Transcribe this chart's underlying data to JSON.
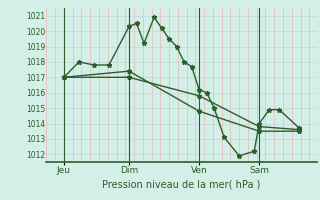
{
  "background_color": "#d4eee8",
  "plot_bg_color": "#d4eee8",
  "grid_color_h": "#c8ddd8",
  "grid_color_v": "#e8b8b8",
  "line_color": "#2a5e2a",
  "marker_color": "#2a5e2a",
  "xlabel": "Pression niveau de la mer( hPa )",
  "ylim": [
    1011.5,
    1021.5
  ],
  "yticks": [
    1012,
    1013,
    1014,
    1015,
    1016,
    1017,
    1018,
    1019,
    1020,
    1021
  ],
  "day_labels": [
    "Jeu",
    "Dim",
    "Ven",
    "Sam"
  ],
  "xlim": [
    0,
    108
  ],
  "day_vline_x": [
    7,
    33,
    61,
    85
  ],
  "series1": {
    "x": [
      7,
      13,
      19,
      25,
      33,
      36,
      39,
      43,
      46,
      49,
      52,
      55,
      58,
      61,
      64,
      67,
      71,
      77,
      83,
      85,
      89,
      93,
      101
    ],
    "y": [
      1017.0,
      1018.0,
      1017.8,
      1017.8,
      1020.3,
      1020.5,
      1019.2,
      1020.9,
      1020.2,
      1019.5,
      1019.0,
      1018.0,
      1017.7,
      1016.2,
      1016.0,
      1015.0,
      1013.1,
      1011.9,
      1012.2,
      1014.0,
      1014.9,
      1014.9,
      1013.7
    ]
  },
  "series2": {
    "x": [
      7,
      33,
      61,
      85,
      101
    ],
    "y": [
      1017.0,
      1017.0,
      1015.8,
      1013.8,
      1013.6
    ]
  },
  "series3": {
    "x": [
      7,
      33,
      61,
      85,
      101
    ],
    "y": [
      1017.0,
      1017.4,
      1014.8,
      1013.5,
      1013.5
    ]
  }
}
